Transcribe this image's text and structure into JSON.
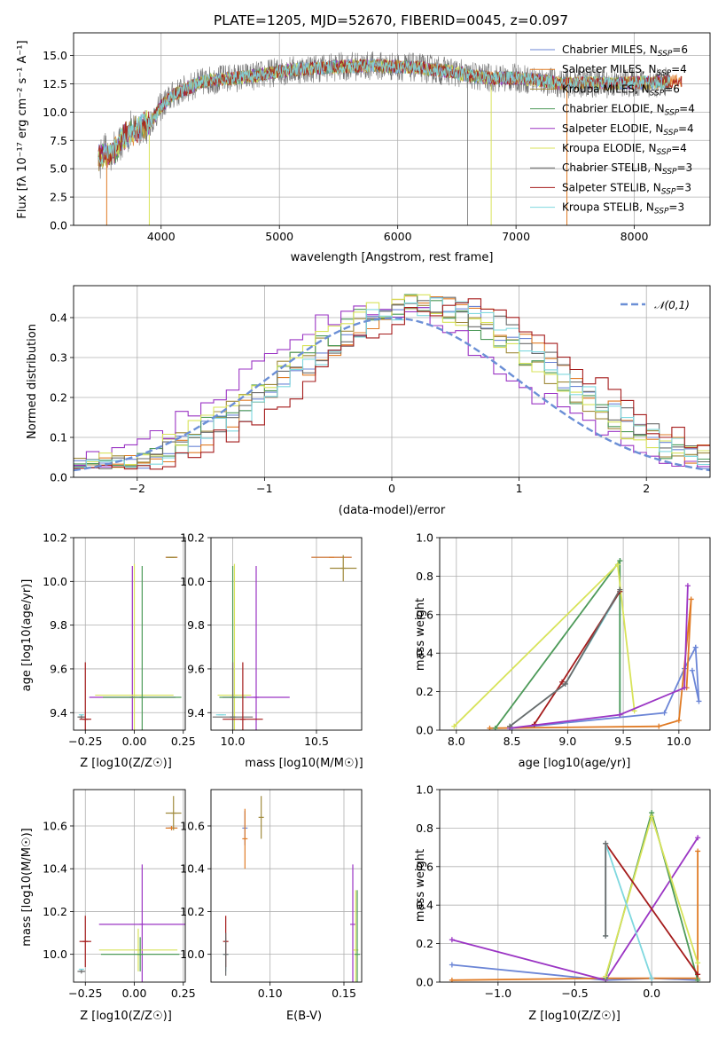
{
  "figure_title": "PLATE=1205, MJD=52670, FIBERID=0045, z=0.097",
  "models": [
    {
      "name": "Chabrier MILES",
      "nssp": "6",
      "color": "#6b85d6"
    },
    {
      "name": "Salpeter MILES",
      "nssp": "4",
      "color": "#e07b25"
    },
    {
      "name": "Kroupa MILES",
      "nssp": "6",
      "color": "#a08a3c"
    },
    {
      "name": "Chabrier ELODIE",
      "nssp": "4",
      "color": "#4d9a59"
    },
    {
      "name": "Salpeter ELODIE",
      "nssp": "4",
      "color": "#9b35c4"
    },
    {
      "name": "Kroupa ELODIE",
      "nssp": "4",
      "color": "#d8e35a"
    },
    {
      "name": "Chabrier STELIB",
      "nssp": "3",
      "color": "#6b6b6b"
    },
    {
      "name": "Salpeter STELIB",
      "nssp": "3",
      "color": "#a51c1c"
    },
    {
      "name": "Kroupa STELIB",
      "nssp": "3",
      "color": "#7fd8df"
    }
  ],
  "legend_ssp": "N",
  "legend_ssp_sub": "SSP",
  "spectrum_xlabel": "wavelength [Angstrom, rest frame]",
  "spectrum_ylabel": "Flux [fλ 10⁻¹⁷ erg cm⁻² s⁻¹ A⁻¹]",
  "hist_xlabel": "(data-model)/error",
  "hist_ylabel": "Normed distribution",
  "hist_legend": "𝒩(0,1)",
  "age_label": "age  [log10(age/yr)]",
  "Z_label": "Z [log10(Z/Z☉)]",
  "mass_label": "mass [log10(M/M☉)]",
  "mass_weight_label": "mass weight",
  "ebv_label": "E(B-V)",
  "chart_data": [
    {
      "type": "line",
      "id": "spectrum",
      "xlim": [
        3260,
        8640
      ],
      "ylim": [
        0,
        17
      ],
      "xticks": [
        4000,
        5000,
        6000,
        7000,
        8000
      ],
      "yticks": [
        0.0,
        2.5,
        5.0,
        7.5,
        10.0,
        12.5,
        15.0
      ],
      "xlabel": "wavelength [Angstrom, rest frame]",
      "anchors_x": [
        3470,
        3600,
        3700,
        3800,
        3900,
        4000,
        4100,
        4200,
        4300,
        4400,
        4600,
        4800,
        5000,
        5200,
        5500,
        5800,
        6000,
        6200,
        6500,
        6600,
        6800,
        7000,
        7200,
        7400,
        7600,
        7800,
        8000,
        8200,
        8300
      ],
      "anchors_y": [
        6.0,
        6.5,
        8.0,
        8.5,
        9.0,
        10.5,
        11.5,
        12.0,
        12.5,
        12.8,
        13.0,
        13.2,
        13.6,
        13.8,
        14.0,
        14.1,
        14.0,
        13.9,
        13.5,
        13.2,
        13.0,
        13.0,
        12.8,
        12.5,
        12.6,
        12.5,
        12.6,
        12.6,
        12.7
      ],
      "series": [
        "Chabrier MILES",
        "Salpeter MILES",
        "Kroupa MILES",
        "Chabrier ELODIE",
        "Salpeter ELODIE",
        "Kroupa ELODIE",
        "Chabrier STELIB",
        "Salpeter STELIB",
        "Kroupa STELIB"
      ]
    },
    {
      "type": "bar",
      "id": "residual-histogram",
      "xlim": [
        -2.5,
        2.5
      ],
      "ylim": [
        0,
        0.48
      ],
      "xticks": [
        -2,
        -1,
        0,
        1,
        2
      ],
      "yticks": [
        0.0,
        0.1,
        0.2,
        0.3,
        0.4
      ],
      "bin_width": 0.1,
      "note": "step histograms of (data-model)/error for each of the 9 models plus the N(0,1) curve"
    },
    {
      "type": "scatter",
      "id": "age-vs-Z",
      "xlim": [
        -0.31,
        0.26
      ],
      "ylim": [
        9.32,
        10.2
      ],
      "xticks": [
        -0.25,
        0.0,
        0.25
      ],
      "yticks": [
        9.4,
        9.6,
        9.8,
        10.0,
        10.2
      ],
      "points": [
        {
          "m": "Chabrier MILES",
          "x": 0.19,
          "y": 10.11,
          "xe": 0.03,
          "ye": 0.0
        },
        {
          "m": "Salpeter MILES",
          "x": 0.19,
          "y": 10.11,
          "xe": 0.03,
          "ye": 0.0
        },
        {
          "m": "Kroupa MILES",
          "x": 0.19,
          "y": 10.11,
          "xe": 0.025,
          "ye": 0.0
        },
        {
          "m": "Salpeter ELODIE",
          "x": -0.01,
          "y": 9.47,
          "xe": 0.22,
          "ye": 0.6
        },
        {
          "m": "Kroupa ELODIE",
          "x": 0.0,
          "y": 9.48,
          "xe": 0.2,
          "ye": 0.6
        },
        {
          "m": "Chabrier ELODIE",
          "x": 0.04,
          "y": 9.47,
          "xe": 0.2,
          "ye": 0.6
        },
        {
          "m": "Chabrier STELIB",
          "x": -0.27,
          "y": 9.38,
          "xe": 0.02,
          "ye": 0.01
        },
        {
          "m": "Salpeter STELIB",
          "x": -0.25,
          "y": 9.37,
          "xe": 0.03,
          "ye": 0.26
        },
        {
          "m": "Kroupa STELIB",
          "x": -0.27,
          "y": 9.39,
          "xe": 0.01,
          "ye": 0.0
        }
      ]
    },
    {
      "type": "scatter",
      "id": "age-vs-mass",
      "xlim": [
        9.87,
        10.77
      ],
      "ylim": [
        9.32,
        10.2
      ],
      "xticks": [
        10.0,
        10.5
      ],
      "yticks": [
        9.4,
        9.6,
        9.8,
        10.0,
        10.2
      ],
      "points": [
        {
          "m": "Chabrier MILES",
          "x": 10.59,
          "y": 10.11,
          "xe": 0.12,
          "ye": 0.0
        },
        {
          "m": "Salpeter MILES",
          "x": 10.59,
          "y": 10.11,
          "xe": 0.12,
          "ye": 0.0
        },
        {
          "m": "Kroupa MILES",
          "x": 10.66,
          "y": 10.06,
          "xe": 0.08,
          "ye": 0.06
        },
        {
          "m": "Salpeter ELODIE",
          "x": 10.14,
          "y": 9.47,
          "xe": 0.2,
          "ye": 0.6
        },
        {
          "m": "Kroupa ELODIE",
          "x": 10.01,
          "y": 9.48,
          "xe": 0.1,
          "ye": 0.6
        },
        {
          "m": "Chabrier ELODIE",
          "x": 10.0,
          "y": 9.47,
          "xe": 0.08,
          "ye": 0.6
        },
        {
          "m": "Chabrier STELIB",
          "x": 10.0,
          "y": 9.38,
          "xe": 0.12,
          "ye": 0.25
        },
        {
          "m": "Salpeter STELIB",
          "x": 10.06,
          "y": 9.37,
          "xe": 0.12,
          "ye": 0.26
        },
        {
          "m": "Kroupa STELIB",
          "x": 9.93,
          "y": 9.39,
          "xe": 0.03,
          "ye": 0.0
        }
      ]
    },
    {
      "type": "line",
      "id": "mass-weight-vs-age",
      "xlim": [
        7.85,
        10.28
      ],
      "ylim": [
        0,
        1.0
      ],
      "xticks": [
        8.0,
        8.5,
        9.0,
        9.5,
        10.0
      ],
      "yticks": [
        0.0,
        0.2,
        0.4,
        0.6,
        0.8,
        1.0
      ],
      "series": [
        {
          "m": "Chabrier MILES",
          "x": [
            8.5,
            9.87,
            10.05,
            10.15,
            10.18,
            10.12
          ],
          "y": [
            0.01,
            0.09,
            0.32,
            0.43,
            0.15,
            0.31
          ]
        },
        {
          "m": "Salpeter MILES",
          "x": [
            8.3,
            9.82,
            10.0,
            10.11,
            10.07
          ],
          "y": [
            0.01,
            0.02,
            0.05,
            0.68,
            0.22
          ]
        },
        {
          "m": "Kroupa STELIB",
          "x": [
            8.48,
            8.98,
            9.47,
            9.47
          ],
          "y": [
            0.02,
            0.24,
            0.72,
            0.08
          ]
        },
        {
          "m": "Chabrier ELODIE",
          "x": [
            8.35,
            9.47,
            9.47
          ],
          "y": [
            0.01,
            0.88,
            0.08
          ]
        },
        {
          "m": "Kroupa ELODIE",
          "x": [
            7.98,
            9.45,
            9.6
          ],
          "y": [
            0.02,
            0.86,
            0.1
          ]
        },
        {
          "m": "Salpeter STELIB",
          "x": [
            8.7,
            8.95,
            9.47
          ],
          "y": [
            0.03,
            0.25,
            0.72
          ]
        },
        {
          "m": "Salpeter ELODIE",
          "x": [
            8.48,
            9.47,
            10.05,
            10.08
          ],
          "y": [
            0.01,
            0.08,
            0.22,
            0.75
          ]
        },
        {
          "m": "Chabrier STELIB",
          "x": [
            8.48,
            8.98,
            9.47
          ],
          "y": [
            0.02,
            0.24,
            0.73
          ]
        }
      ]
    },
    {
      "type": "scatter",
      "id": "mass-vs-Z",
      "xlim": [
        -0.31,
        0.26
      ],
      "ylim": [
        9.87,
        10.77
      ],
      "xticks": [
        -0.25,
        0.0,
        0.25
      ],
      "yticks": [
        10.0,
        10.2,
        10.4,
        10.6
      ],
      "points": [
        {
          "m": "Chabrier MILES",
          "x": 0.19,
          "y": 10.59,
          "xe": 0.03,
          "ye": 0.01
        },
        {
          "m": "Salpeter MILES",
          "x": 0.19,
          "y": 10.59,
          "xe": 0.03,
          "ye": 0.01
        },
        {
          "m": "Kroupa MILES",
          "x": 0.2,
          "y": 10.66,
          "xe": 0.04,
          "ye": 0.08
        },
        {
          "m": "Salpeter ELODIE",
          "x": 0.04,
          "y": 10.14,
          "xe": 0.22,
          "ye": 0.28
        },
        {
          "m": "Kroupa ELODIE",
          "x": 0.02,
          "y": 10.02,
          "xe": 0.2,
          "ye": 0.1
        },
        {
          "m": "Chabrier ELODIE",
          "x": 0.03,
          "y": 10.0,
          "xe": 0.2,
          "ye": 0.08
        },
        {
          "m": "Chabrier STELIB",
          "x": -0.27,
          "y": 9.92,
          "xe": 0.02,
          "ye": 0.01
        },
        {
          "m": "Salpeter STELIB",
          "x": -0.25,
          "y": 10.06,
          "xe": 0.03,
          "ye": 0.12
        },
        {
          "m": "Kroupa STELIB",
          "x": -0.27,
          "y": 9.93,
          "xe": 0.01,
          "ye": 0.0
        }
      ]
    },
    {
      "type": "scatter",
      "id": "mass-vs-ebv",
      "xlim": [
        0.06,
        0.162
      ],
      "ylim": [
        9.87,
        10.77
      ],
      "xticks": [
        0.1,
        0.15
      ],
      "yticks": [
        10.0,
        10.2,
        10.4,
        10.6
      ],
      "points": [
        {
          "m": "Kroupa STELIB",
          "x": 0.07,
          "y": 10.0,
          "ye": 0.08
        },
        {
          "m": "Salpeter STELIB",
          "x": 0.07,
          "y": 10.06,
          "ye": 0.12
        },
        {
          "m": "Chabrier STELIB",
          "x": 0.07,
          "y": 10.0,
          "ye": 0.1
        },
        {
          "m": "Chabrier MILES",
          "x": 0.083,
          "y": 10.59,
          "ye": 0.08
        },
        {
          "m": "Salpeter MILES",
          "x": 0.083,
          "y": 10.54,
          "ye": 0.14
        },
        {
          "m": "Kroupa MILES",
          "x": 0.094,
          "y": 10.64,
          "ye": 0.1
        },
        {
          "m": "Salpeter ELODIE",
          "x": 0.156,
          "y": 10.14,
          "ye": 0.28
        },
        {
          "m": "Kroupa ELODIE",
          "x": 0.158,
          "y": 10.02,
          "ye": 0.28
        },
        {
          "m": "Chabrier ELODIE",
          "x": 0.159,
          "y": 10.0,
          "ye": 0.3
        }
      ]
    },
    {
      "type": "line",
      "id": "mass-weight-vs-Z",
      "xlim": [
        -1.38,
        0.38
      ],
      "ylim": [
        0,
        1.0
      ],
      "xticks": [
        -1.0,
        -0.5,
        0.0
      ],
      "yticks": [
        0.0,
        0.2,
        0.4,
        0.6,
        0.8,
        1.0
      ],
      "series": [
        {
          "m": "Chabrier MILES",
          "x": [
            -1.3,
            -0.3,
            0.0,
            0.3
          ],
          "y": [
            0.09,
            0.01,
            0.02,
            0.01
          ]
        },
        {
          "m": "Salpeter MILES",
          "x": [
            -1.3,
            -0.3,
            0.3,
            0.3
          ],
          "y": [
            0.01,
            0.02,
            0.02,
            0.68
          ]
        },
        {
          "m": "Salpeter ELODIE",
          "x": [
            -1.3,
            -0.3,
            0.3
          ],
          "y": [
            0.22,
            0.01,
            0.75
          ]
        },
        {
          "m": "Chabrier ELODIE",
          "x": [
            -0.3,
            0.0,
            0.3
          ],
          "y": [
            0.02,
            0.88,
            0.01
          ]
        },
        {
          "m": "Kroupa ELODIE",
          "x": [
            -0.3,
            0.0,
            0.3
          ],
          "y": [
            0.03,
            0.86,
            0.1
          ]
        },
        {
          "m": "Salpeter STELIB",
          "x": [
            -0.3,
            0.3
          ],
          "y": [
            0.72,
            0.04
          ]
        },
        {
          "m": "Kroupa STELIB",
          "x": [
            -0.3,
            -0.3,
            0.0
          ],
          "y": [
            0.24,
            0.72,
            0.02
          ]
        },
        {
          "m": "Chabrier STELIB",
          "x": [
            -0.3,
            -0.3
          ],
          "y": [
            0.24,
            0.72
          ]
        }
      ]
    }
  ]
}
